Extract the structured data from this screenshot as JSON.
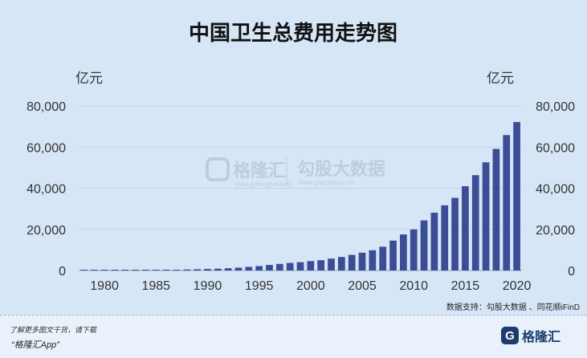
{
  "chart_data": {
    "type": "bar",
    "title": "中国卫生总费用走势图",
    "unit_left": "亿元",
    "unit_right": "亿元",
    "ylim": [
      0,
      80000
    ],
    "yticks": [
      "0",
      "20,000",
      "40,000",
      "60,000",
      "80,000"
    ],
    "ytick_values": [
      0,
      20000,
      40000,
      60000,
      80000
    ],
    "xticks": [
      "1980",
      "1985",
      "1990",
      "1995",
      "2000",
      "2005",
      "2010",
      "2015",
      "2020"
    ],
    "xtick_values": [
      1980,
      1985,
      1990,
      1995,
      2000,
      2005,
      2010,
      2015,
      2020
    ],
    "grid": "horizontal",
    "color": "#3b4d96",
    "x": [
      1978,
      1979,
      1980,
      1981,
      1982,
      1983,
      1984,
      1985,
      1986,
      1987,
      1988,
      1989,
      1990,
      1991,
      1992,
      1993,
      1994,
      1995,
      1996,
      1997,
      1998,
      1999,
      2000,
      2001,
      2002,
      2003,
      2004,
      2005,
      2006,
      2007,
      2008,
      2009,
      2010,
      2011,
      2012,
      2013,
      2014,
      2015,
      2016,
      2017,
      2018,
      2019,
      2020
    ],
    "values": [
      110,
      126,
      143,
      160,
      177,
      207,
      242,
      279,
      315,
      379,
      488,
      615,
      747,
      893,
      1097,
      1378,
      1761,
      2155,
      2709,
      3197,
      3678,
      4047,
      4587,
      5026,
      5790,
      6584,
      7590,
      8660,
      9843,
      11574,
      14535,
      17542,
      19980,
      24346,
      28119,
      31669,
      35312,
      40975,
      46345,
      52598,
      59122,
      65841,
      72175
    ]
  },
  "watermark": {
    "left_name": "格隆汇",
    "left_sub": "www.gelonghui.com",
    "right_name": "勾股大数据",
    "right_sub": "www.gogudata.com"
  },
  "source": "数据支持：勾股大数据 、同花顺iFinD",
  "footer": {
    "download_tip": "了解更多图文干货，请下载",
    "app_name": "“格隆汇App”",
    "brand_logo": "G",
    "brand_name": "格隆汇"
  }
}
